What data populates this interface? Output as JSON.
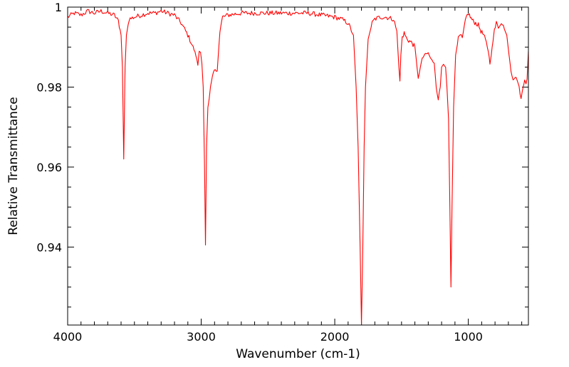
{
  "chart_data": {
    "type": "line",
    "title": "",
    "xlabel": "Wavenumber (cm-1)",
    "ylabel": "Relative Transmittance",
    "xlim": [
      4000,
      550
    ],
    "ylim": [
      0.9205,
      1.0
    ],
    "x_ticks": [
      4000,
      3000,
      2000,
      1000
    ],
    "x_tick_labels": [
      "4000",
      "3000",
      "2000",
      "1000"
    ],
    "y_ticks": [
      0.94,
      0.96,
      0.98,
      1.0
    ],
    "y_tick_labels": [
      "0.94",
      "0.96",
      "0.98",
      "1"
    ],
    "grid": false,
    "legend": "none",
    "series": [
      {
        "name": "spectrum",
        "color": "#ff0000",
        "points": [
          [
            4000,
            0.9975
          ],
          [
            3950,
            0.9985
          ],
          [
            3900,
            0.998
          ],
          [
            3850,
            0.999
          ],
          [
            3800,
            0.9985
          ],
          [
            3750,
            0.999
          ],
          [
            3700,
            0.9985
          ],
          [
            3650,
            0.998
          ],
          [
            3620,
            0.9965
          ],
          [
            3600,
            0.993
          ],
          [
            3590,
            0.985
          ],
          [
            3580,
            0.962
          ],
          [
            3570,
            0.985
          ],
          [
            3560,
            0.993
          ],
          [
            3540,
            0.997
          ],
          [
            3500,
            0.9975
          ],
          [
            3450,
            0.998
          ],
          [
            3400,
            0.9985
          ],
          [
            3350,
            0.9985
          ],
          [
            3300,
            0.999
          ],
          [
            3250,
            0.9985
          ],
          [
            3200,
            0.998
          ],
          [
            3150,
            0.996
          ],
          [
            3100,
            0.993
          ],
          [
            3060,
            0.99
          ],
          [
            3040,
            0.988
          ],
          [
            3025,
            0.9855
          ],
          [
            3015,
            0.989
          ],
          [
            3005,
            0.989
          ],
          [
            2995,
            0.986
          ],
          [
            2985,
            0.98
          ],
          [
            2975,
            0.96
          ],
          [
            2968,
            0.9405
          ],
          [
            2960,
            0.965
          ],
          [
            2950,
            0.975
          ],
          [
            2940,
            0.977
          ],
          [
            2930,
            0.98
          ],
          [
            2910,
            0.9835
          ],
          [
            2895,
            0.9845
          ],
          [
            2880,
            0.984
          ],
          [
            2860,
            0.994
          ],
          [
            2840,
            0.9975
          ],
          [
            2800,
            0.998
          ],
          [
            2700,
            0.9985
          ],
          [
            2600,
            0.9985
          ],
          [
            2500,
            0.9985
          ],
          [
            2400,
            0.9985
          ],
          [
            2300,
            0.9985
          ],
          [
            2200,
            0.9985
          ],
          [
            2100,
            0.998
          ],
          [
            2000,
            0.9975
          ],
          [
            1950,
            0.997
          ],
          [
            1900,
            0.996
          ],
          [
            1860,
            0.993
          ],
          [
            1840,
            0.98
          ],
          [
            1825,
            0.965
          ],
          [
            1810,
            0.94
          ],
          [
            1800,
            0.9205
          ],
          [
            1790,
            0.94
          ],
          [
            1780,
            0.965
          ],
          [
            1770,
            0.98
          ],
          [
            1750,
            0.992
          ],
          [
            1720,
            0.996
          ],
          [
            1700,
            0.997
          ],
          [
            1660,
            0.9975
          ],
          [
            1620,
            0.9975
          ],
          [
            1560,
            0.997
          ],
          [
            1535,
            0.994
          ],
          [
            1520,
            0.985
          ],
          [
            1512,
            0.9815
          ],
          [
            1505,
            0.988
          ],
          [
            1495,
            0.9925
          ],
          [
            1480,
            0.9935
          ],
          [
            1460,
            0.992
          ],
          [
            1440,
            0.9915
          ],
          [
            1420,
            0.991
          ],
          [
            1400,
            0.99
          ],
          [
            1390,
            0.987
          ],
          [
            1375,
            0.982
          ],
          [
            1360,
            0.985
          ],
          [
            1345,
            0.987
          ],
          [
            1330,
            0.988
          ],
          [
            1300,
            0.9885
          ],
          [
            1280,
            0.987
          ],
          [
            1255,
            0.986
          ],
          [
            1240,
            0.98
          ],
          [
            1225,
            0.977
          ],
          [
            1210,
            0.98
          ],
          [
            1200,
            0.985
          ],
          [
            1185,
            0.986
          ],
          [
            1170,
            0.985
          ],
          [
            1160,
            0.98
          ],
          [
            1148,
            0.972
          ],
          [
            1138,
            0.95
          ],
          [
            1130,
            0.93
          ],
          [
            1122,
            0.95
          ],
          [
            1110,
            0.975
          ],
          [
            1095,
            0.988
          ],
          [
            1075,
            0.992
          ],
          [
            1060,
            0.993
          ],
          [
            1045,
            0.992
          ],
          [
            1030,
            0.995
          ],
          [
            1015,
            0.9975
          ],
          [
            1000,
            0.9985
          ],
          [
            985,
            0.9975
          ],
          [
            965,
            0.9965
          ],
          [
            945,
            0.996
          ],
          [
            925,
            0.9955
          ],
          [
            905,
            0.994
          ],
          [
            885,
            0.993
          ],
          [
            865,
            0.991
          ],
          [
            850,
            0.989
          ],
          [
            838,
            0.986
          ],
          [
            828,
            0.988
          ],
          [
            815,
            0.992
          ],
          [
            805,
            0.994
          ],
          [
            790,
            0.996
          ],
          [
            775,
            0.995
          ],
          [
            760,
            0.996
          ],
          [
            745,
            0.9955
          ],
          [
            730,
            0.995
          ],
          [
            712,
            0.993
          ],
          [
            695,
            0.988
          ],
          [
            680,
            0.984
          ],
          [
            665,
            0.982
          ],
          [
            650,
            0.9825
          ],
          [
            635,
            0.982
          ],
          [
            620,
            0.98
          ],
          [
            605,
            0.977
          ],
          [
            590,
            0.98
          ],
          [
            578,
            0.982
          ],
          [
            568,
            0.981
          ],
          [
            560,
            0.982
          ],
          [
            550,
            0.989
          ]
        ]
      }
    ]
  }
}
